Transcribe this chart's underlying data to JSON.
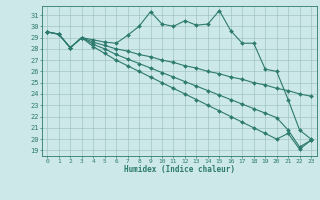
{
  "xlabel": "Humidex (Indice chaleur)",
  "bg_color": "#cce8e8",
  "grid_color": "#99bbbb",
  "line_color": "#2d7a6e",
  "xlim": [
    -0.5,
    23.5
  ],
  "ylim": [
    18.5,
    31.8
  ],
  "xticks": [
    0,
    1,
    2,
    3,
    4,
    5,
    6,
    7,
    8,
    9,
    10,
    11,
    12,
    13,
    14,
    15,
    16,
    17,
    18,
    19,
    20,
    21,
    22,
    23
  ],
  "yticks": [
    19,
    20,
    21,
    22,
    23,
    24,
    25,
    26,
    27,
    28,
    29,
    30,
    31
  ],
  "line1_y": [
    29.5,
    29.3,
    28.1,
    29.0,
    28.8,
    28.6,
    28.5,
    29.2,
    30.0,
    31.3,
    30.2,
    30.0,
    30.5,
    30.1,
    30.2,
    31.4,
    29.6,
    28.5,
    28.5,
    26.2,
    26.0,
    23.5,
    20.8,
    20.0
  ],
  "line2_y": [
    29.5,
    29.3,
    28.1,
    29.0,
    28.6,
    28.3,
    28.0,
    27.8,
    27.5,
    27.3,
    27.0,
    26.8,
    26.5,
    26.3,
    26.0,
    25.8,
    25.5,
    25.3,
    25.0,
    24.8,
    24.5,
    24.3,
    24.0,
    23.8
  ],
  "line3_y": [
    29.5,
    29.3,
    28.1,
    29.0,
    28.4,
    28.0,
    27.5,
    27.1,
    26.7,
    26.3,
    25.9,
    25.5,
    25.1,
    24.7,
    24.3,
    23.9,
    23.5,
    23.1,
    22.7,
    22.3,
    21.9,
    20.8,
    19.3,
    19.9
  ],
  "line4_y": [
    29.5,
    29.3,
    28.1,
    29.0,
    28.2,
    27.6,
    27.0,
    26.5,
    26.0,
    25.5,
    25.0,
    24.5,
    24.0,
    23.5,
    23.0,
    22.5,
    22.0,
    21.5,
    21.0,
    20.5,
    20.0,
    20.5,
    19.1,
    19.9
  ]
}
